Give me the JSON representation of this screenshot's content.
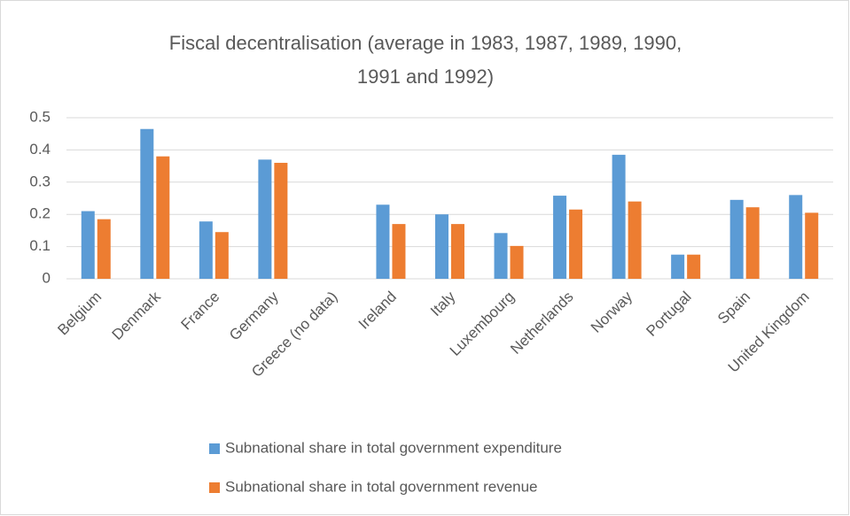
{
  "chart_data": {
    "type": "bar",
    "title": "Fiscal decentralisation (average in 1983, 1987, 1989, 1990, 1991 and 1992)",
    "categories": [
      "Belgium",
      "Denmark",
      "France",
      "Germany",
      "Greece (no data)",
      "Ireland",
      "Italy",
      "Luxembourg",
      "Netherlands",
      "Norway",
      "Portugal",
      "Spain",
      "United Kingdom"
    ],
    "series": [
      {
        "name": "Subnational share in total government expenditure",
        "color": "#5b9bd5",
        "values": [
          0.21,
          0.465,
          0.178,
          0.37,
          null,
          0.23,
          0.2,
          0.142,
          0.258,
          0.385,
          0.075,
          0.245,
          0.26
        ]
      },
      {
        "name": "Subnational share in total government revenue",
        "color": "#ed7d31",
        "values": [
          0.185,
          0.38,
          0.145,
          0.36,
          null,
          0.17,
          0.17,
          0.102,
          0.215,
          0.24,
          0.075,
          0.222,
          0.205
        ]
      }
    ],
    "ylim": [
      0,
      0.5
    ],
    "yticks": [
      0,
      0.1,
      0.2,
      0.3,
      0.4,
      0.5
    ],
    "grid": true,
    "legend": "bottom"
  }
}
